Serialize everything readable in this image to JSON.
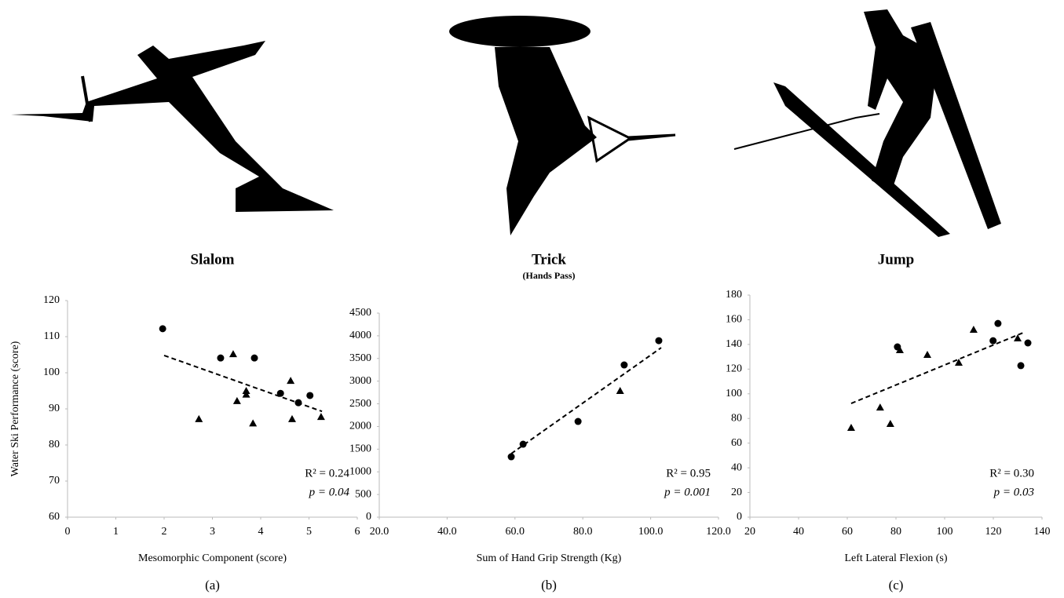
{
  "chart_data": [
    {
      "type": "scatter",
      "title": "Slalom",
      "panel": "(a)",
      "xlabel": "Mesomorphic Component (score)",
      "ylabel": "Water Ski Performance (score)",
      "xlim": [
        0,
        6
      ],
      "xticks": [
        0,
        1,
        2,
        3,
        4,
        5,
        6
      ],
      "ylim": [
        60,
        120
      ],
      "yticks": [
        60,
        70,
        80,
        90,
        100,
        110,
        120
      ],
      "series": [
        {
          "marker": "circle",
          "color": "#000000",
          "x": [
            1.97,
            3.17,
            3.87,
            4.41,
            4.78,
            5.02
          ],
          "values": [
            112.2,
            104.1,
            104.1,
            94.3,
            91.7,
            93.7
          ]
        },
        {
          "marker": "triangle",
          "color": "#000000",
          "x": [
            2.72,
            3.43,
            3.51,
            3.7,
            3.7,
            3.84,
            4.62,
            4.65,
            5.25
          ],
          "values": [
            87.2,
            105.2,
            92.2,
            95,
            94,
            86,
            97.8,
            87.2,
            87.8
          ]
        }
      ],
      "trendline": {
        "x": [
          2,
          5.27
        ],
        "values": [
          104.8,
          89.3
        ]
      },
      "annotations": [
        "R² = 0.24",
        "p = 0.04"
      ]
    },
    {
      "type": "scatter",
      "title": "Trick",
      "subtitle": "(Hands Pass)",
      "panel": "(b)",
      "xlabel": "Sum of Hand Grip Strength (Kg)",
      "xlim": [
        20,
        120
      ],
      "xticks": [
        {
          "value": 20,
          "label": "20.0"
        },
        {
          "value": 40,
          "label": "40.0"
        },
        {
          "value": 60,
          "label": "60.0"
        },
        {
          "value": 80,
          "label": "80.0"
        },
        {
          "value": 100,
          "label": "100.0"
        },
        {
          "value": 120,
          "label": "120.0"
        }
      ],
      "ylim": [
        0,
        4500
      ],
      "yticks": [
        0,
        500,
        1000,
        1500,
        2000,
        2500,
        3000,
        3500,
        4000,
        4500
      ],
      "series": [
        {
          "marker": "circle",
          "color": "#000000",
          "x": [
            58.9,
            62.4,
            78.6,
            92.2,
            102.4
          ],
          "values": [
            1332,
            1609,
            2111,
            3357,
            3893
          ]
        },
        {
          "marker": "triangle",
          "color": "#000000",
          "x": [
            91.0
          ],
          "values": [
            2786
          ]
        }
      ],
      "trendline": {
        "x": [
          58.9,
          103.1
        ],
        "values": [
          1401,
          3737
        ]
      },
      "annotations": [
        "R² = 0.95",
        "p = 0.001"
      ]
    },
    {
      "type": "scatter",
      "title": "Jump",
      "panel": "(c)",
      "xlabel": "Left Lateral Flexion (s)",
      "xlim": [
        20,
        140
      ],
      "xticks": [
        20,
        40,
        60,
        80,
        100,
        120,
        140
      ],
      "ylim": [
        0,
        180
      ],
      "yticks": [
        0,
        20,
        40,
        60,
        80,
        100,
        120,
        140,
        160,
        180
      ],
      "series": [
        {
          "marker": "circle",
          "color": "#000000",
          "x": [
            80.6,
            119.9,
            121.9,
            131.3,
            134.2
          ],
          "values": [
            138,
            143,
            157,
            122.8,
            141.2
          ]
        },
        {
          "marker": "triangle",
          "color": "#000000",
          "x": [
            61.6,
            73.5,
            77.7,
            81.6,
            92.9,
            105.8,
            111.9,
            130
          ],
          "values": [
            72.5,
            89,
            75.7,
            135.5,
            131.7,
            125.3,
            152,
            145
          ]
        }
      ],
      "trendline": {
        "x": [
          61.6,
          132.9
        ],
        "values": [
          92.2,
          150
        ]
      },
      "annotations": [
        "R² = 0.30",
        "p = 0.03"
      ]
    }
  ]
}
